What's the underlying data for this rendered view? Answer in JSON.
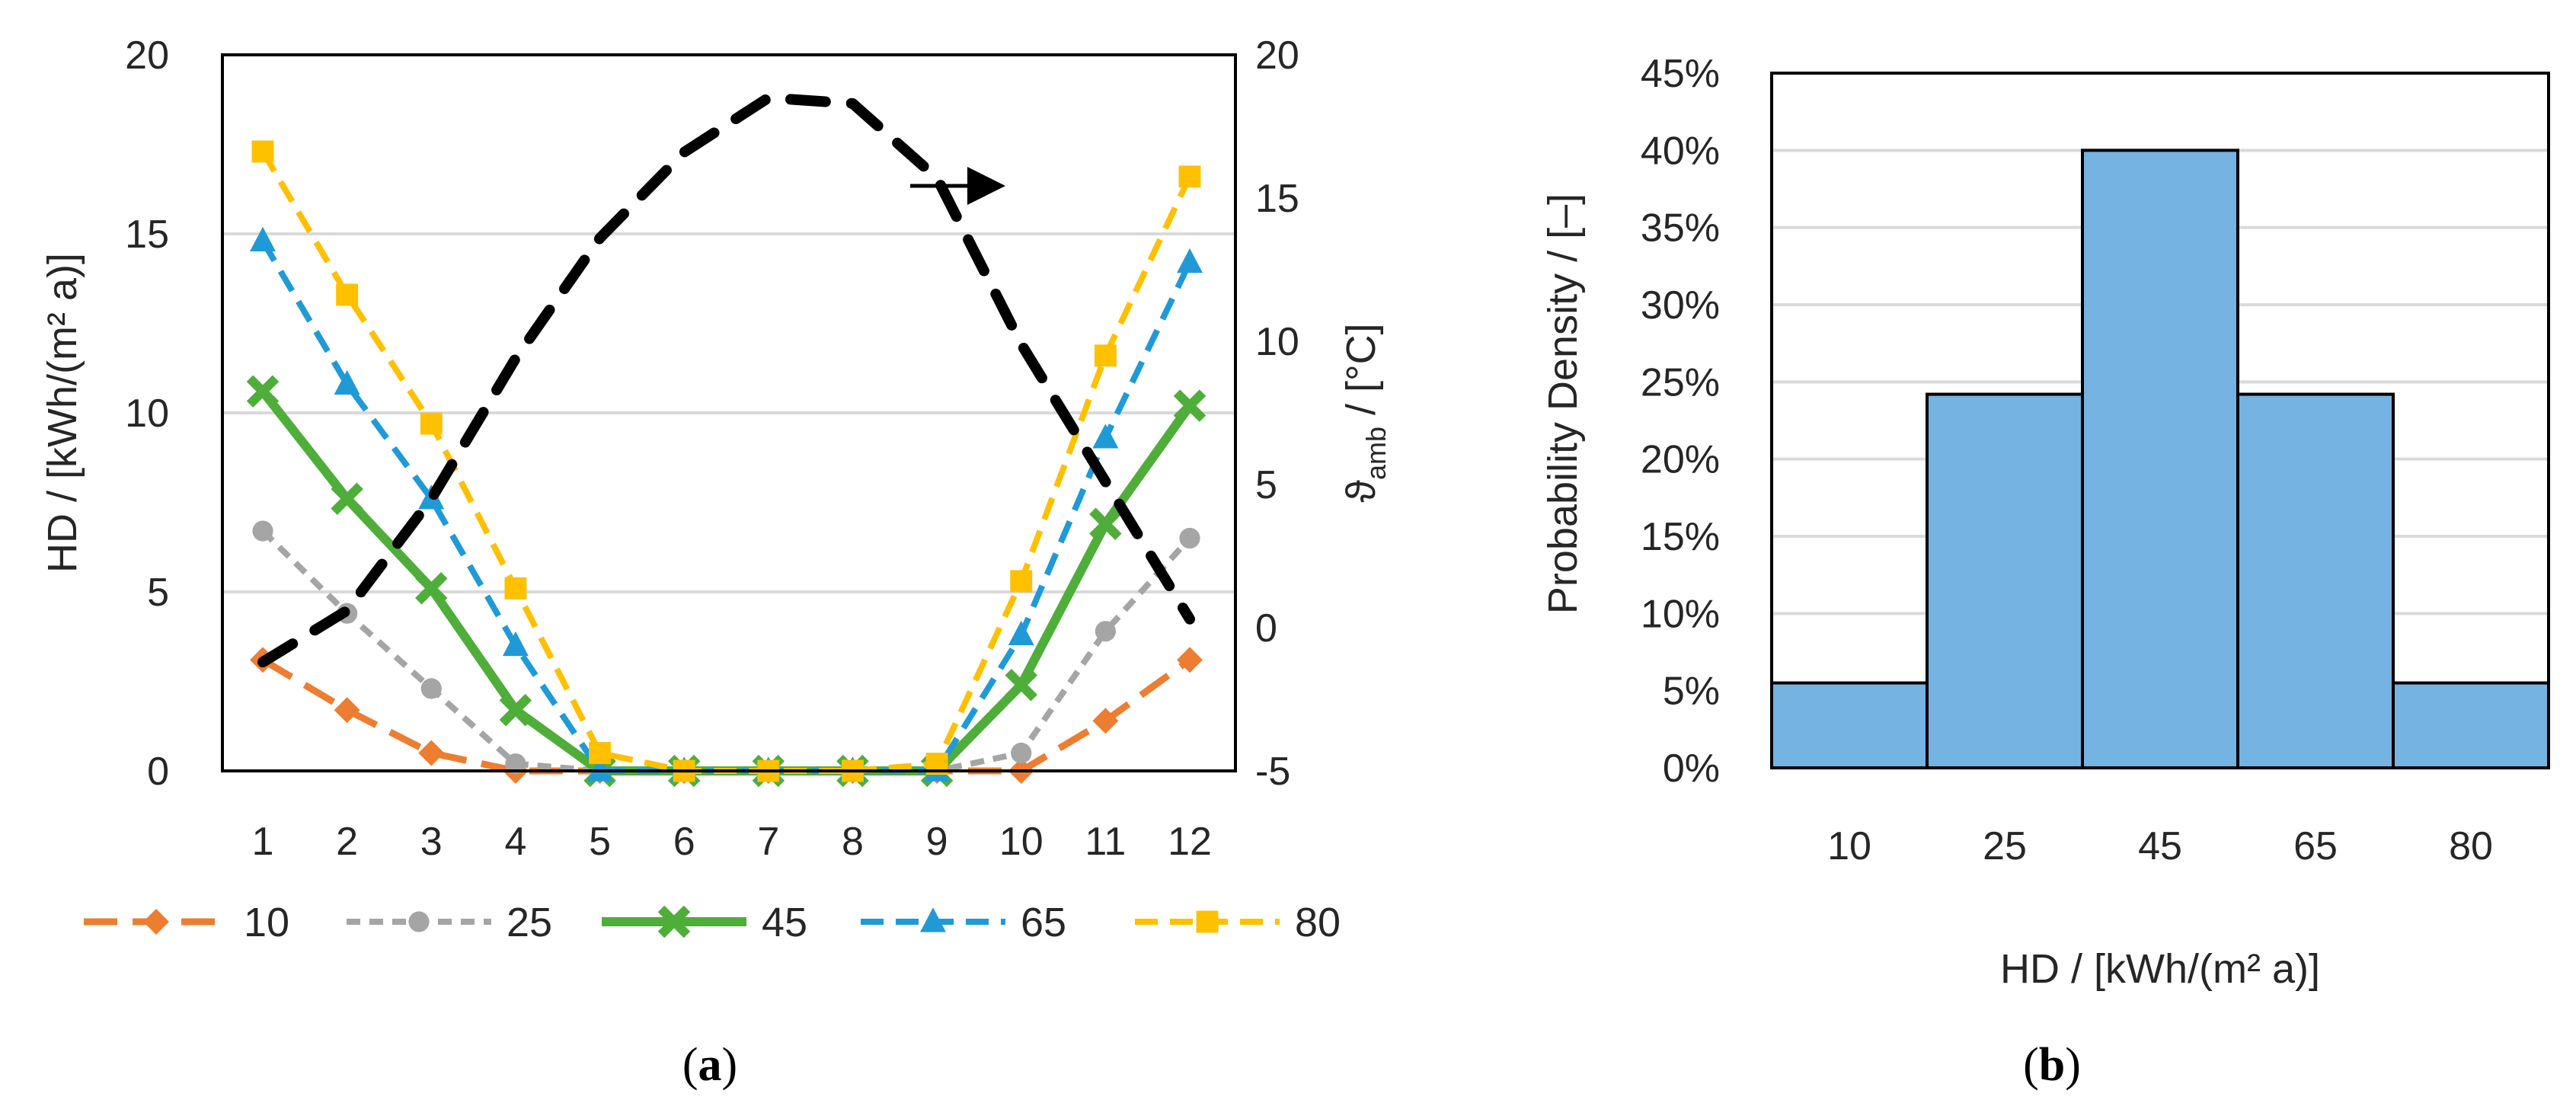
{
  "chart_data": [
    {
      "type": "line",
      "panel_label": "(a)",
      "panel_letter": "a",
      "x": [
        1,
        2,
        3,
        4,
        5,
        6,
        7,
        8,
        9,
        10,
        11,
        12
      ],
      "x_tick_labels": [
        "1",
        "2",
        "3",
        "4",
        "5",
        "6",
        "7",
        "8",
        "9",
        "10",
        "11",
        "12"
      ],
      "ylabel": "HD / [kWh/(m² a)]",
      "ylim": [
        0,
        20
      ],
      "y_ticks": [
        "0",
        "5",
        "10",
        "15",
        "20"
      ],
      "y2label_main": "ϑ",
      "y2label_sub": "amb",
      "y2label_rest": " / [°C]",
      "y2lim": [
        -5,
        20
      ],
      "y2_ticks": [
        "-5",
        "0",
        "5",
        "10",
        "15",
        "20"
      ],
      "grid": "horizontal",
      "legend": "bottom",
      "annotation": "arrow pointing right marks the ambient temperature series (right axis)",
      "series": [
        {
          "name": "10",
          "color": "#ED7D31",
          "style": "long-dash",
          "marker": "diamond",
          "values": [
            3.1,
            1.7,
            0.5,
            0.0,
            0.0,
            0.0,
            0.0,
            0.0,
            0.0,
            0.0,
            1.4,
            3.1
          ]
        },
        {
          "name": "25",
          "color": "#A5A5A5",
          "style": "short-dash",
          "marker": "circle",
          "values": [
            6.7,
            4.4,
            2.3,
            0.2,
            0.0,
            0.0,
            0.0,
            0.0,
            0.0,
            0.5,
            3.9,
            6.5
          ]
        },
        {
          "name": "45",
          "color": "#4FAE3A",
          "style": "solid",
          "marker": "x",
          "values": [
            10.6,
            7.6,
            5.1,
            1.7,
            0.0,
            0.0,
            0.0,
            0.0,
            0.0,
            2.4,
            6.9,
            10.2
          ]
        },
        {
          "name": "65",
          "color": "#1F9AD7",
          "style": "dash",
          "marker": "triangle",
          "values": [
            14.8,
            10.8,
            7.6,
            3.5,
            0.0,
            0.0,
            0.0,
            0.0,
            0.0,
            3.8,
            9.3,
            14.2
          ]
        },
        {
          "name": "80",
          "color": "#FFC000",
          "style": "dash",
          "marker": "square",
          "values": [
            17.3,
            13.3,
            9.7,
            5.1,
            0.5,
            0.0,
            0.0,
            0.0,
            0.2,
            5.3,
            11.6,
            16.6
          ]
        }
      ],
      "ambient_temperature": {
        "name": "ambient temperature",
        "axis": "right",
        "color": "#000000",
        "style": "heavy-dash",
        "values": [
          -1.2,
          0.6,
          4.5,
          9.4,
          13.6,
          16.6,
          18.5,
          18.3,
          15.7,
          9.9,
          5.1,
          0.3
        ]
      }
    },
    {
      "type": "bar",
      "panel_label": "(b)",
      "panel_letter": "b",
      "categories": [
        "10",
        "25",
        "45",
        "65",
        "80"
      ],
      "values": [
        5.5,
        24.2,
        40.0,
        24.2,
        5.5
      ],
      "value_unit": "%",
      "color": "#74B3E2",
      "xlabel": "HD / [kWh/(m² a)]",
      "ylabel": "Probability Density / [–]",
      "ylim": [
        0,
        45
      ],
      "y_ticks": [
        "0%",
        "5%",
        "10%",
        "15%",
        "20%",
        "25%",
        "30%",
        "35%",
        "40%",
        "45%"
      ],
      "grid": "horizontal"
    }
  ]
}
